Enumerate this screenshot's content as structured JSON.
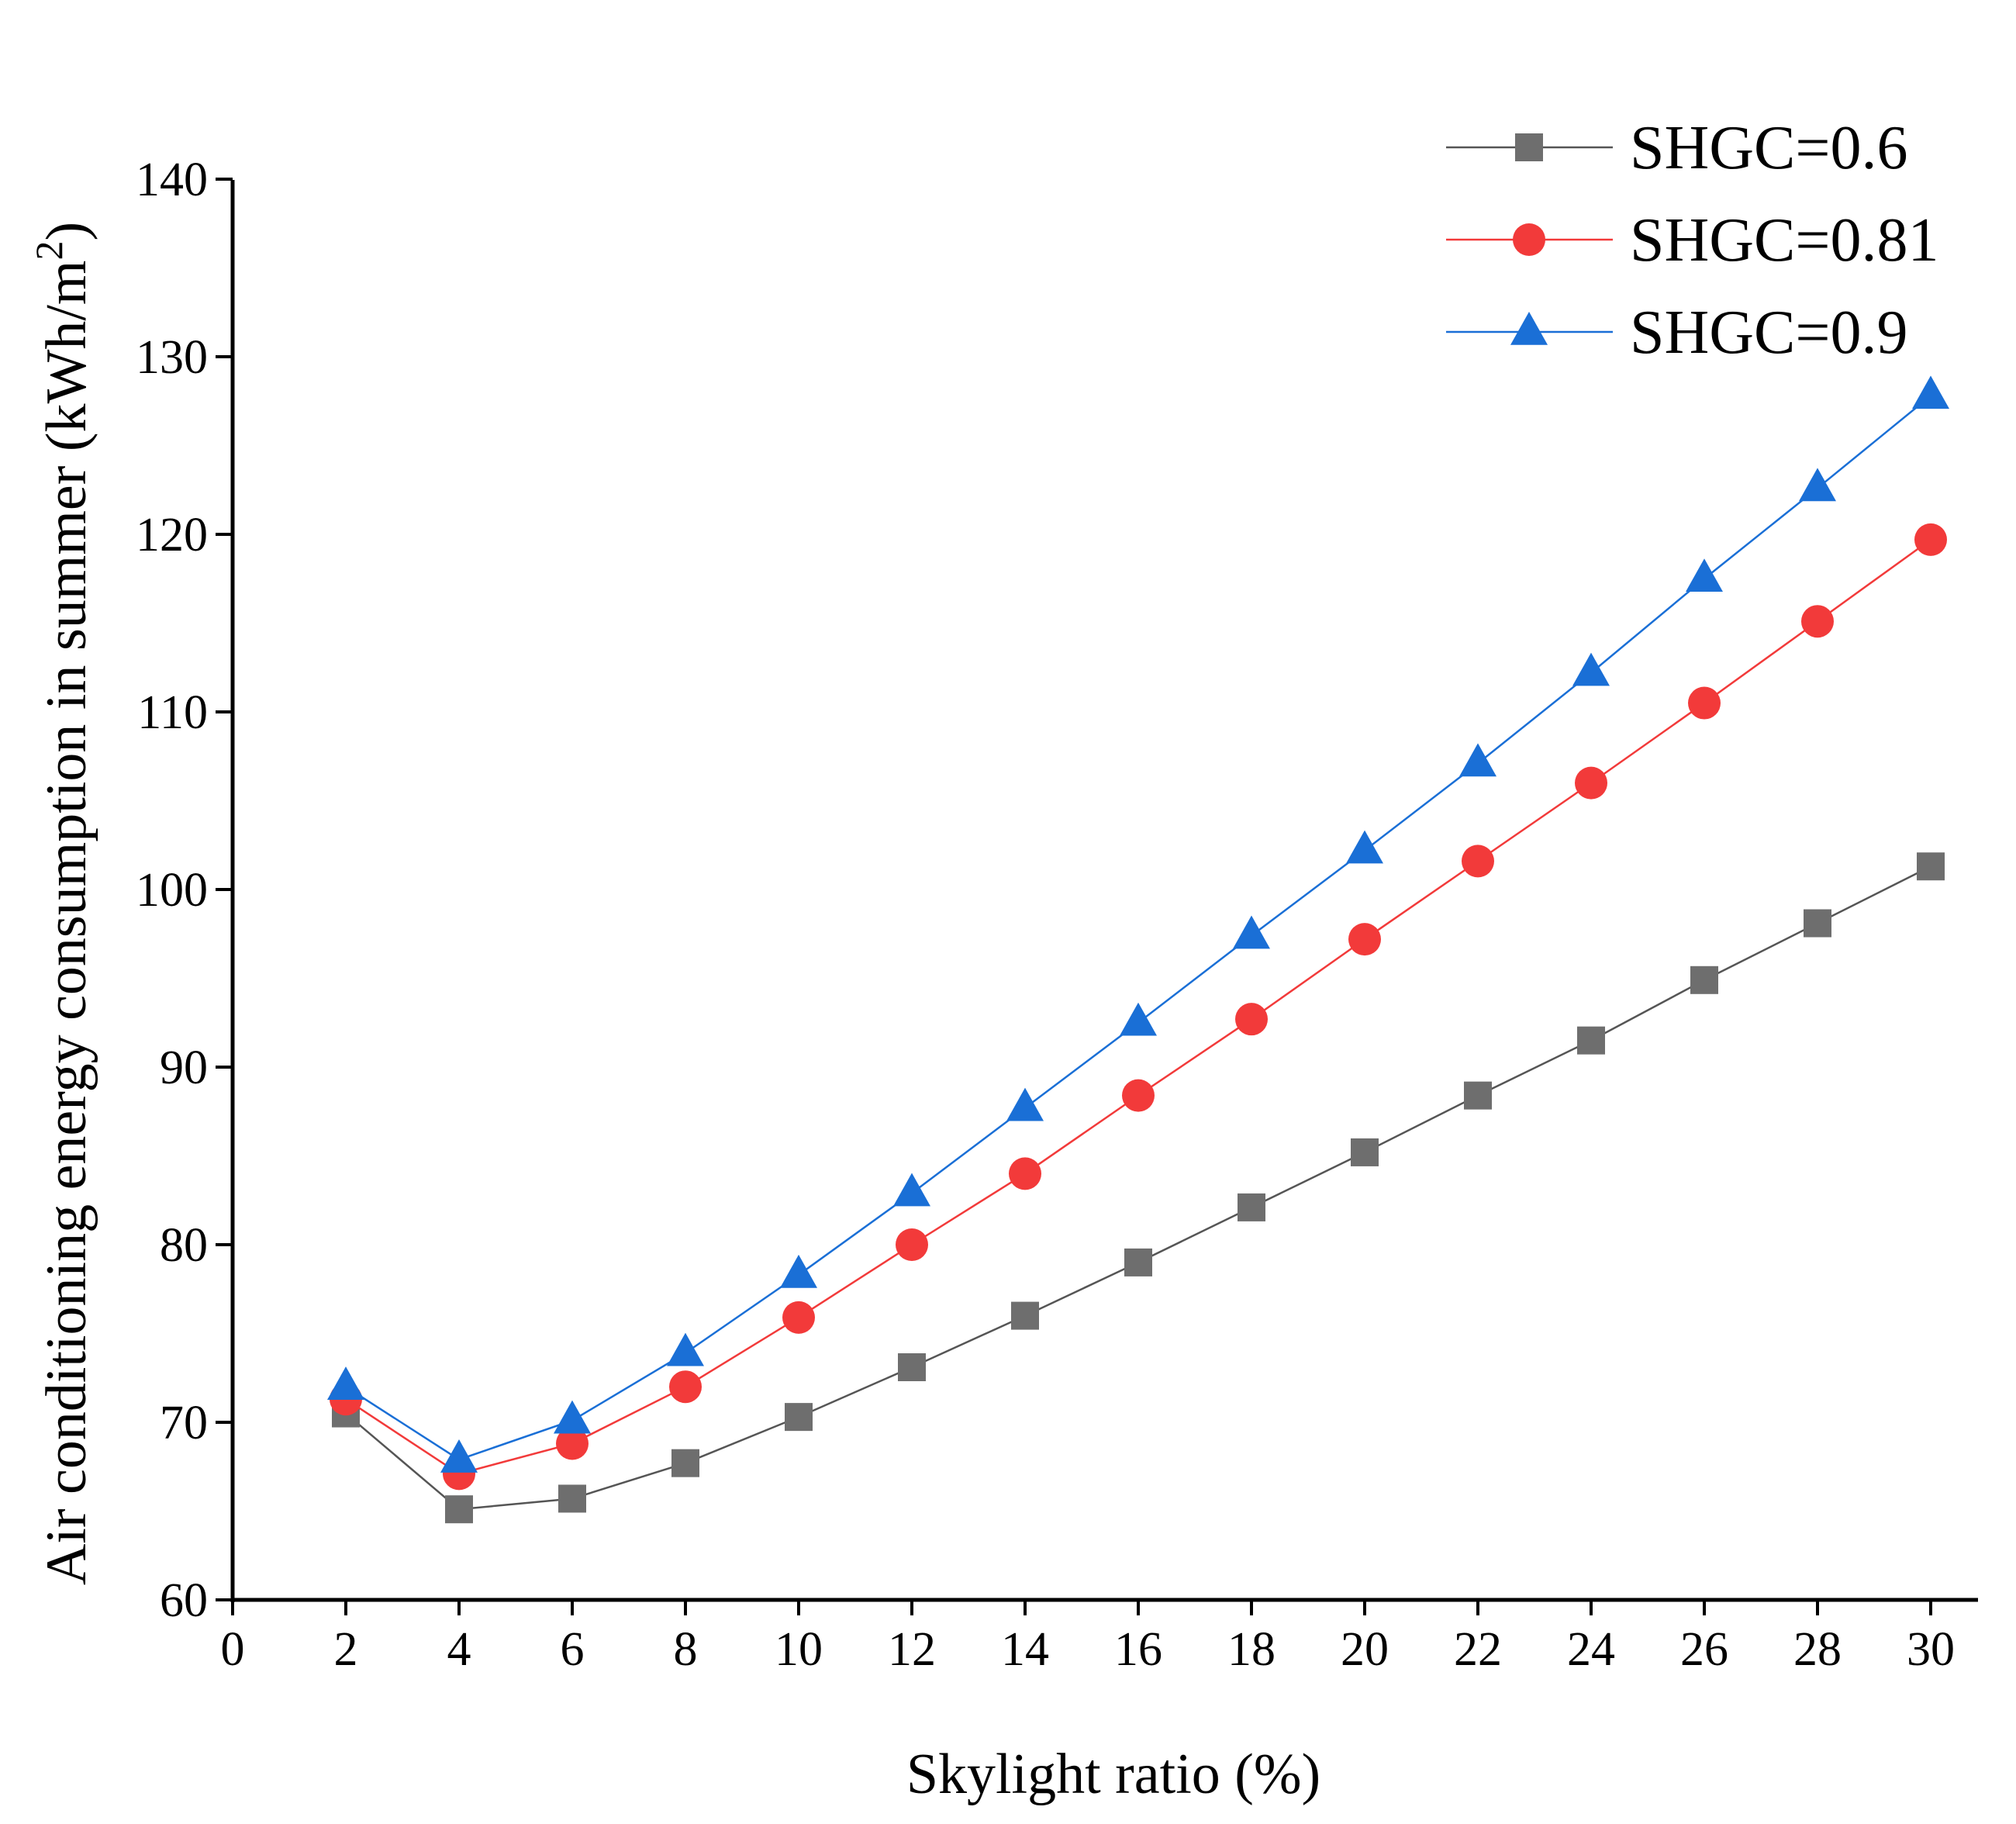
{
  "chart_data": {
    "type": "line",
    "title": "",
    "xlabel": "Skylight ratio (%)",
    "ylabel_main": "Air conditioning energy consumption in summer (kWh/m",
    "ylabel_sup": "2",
    "ylabel_close": ")",
    "xlim": [
      0,
      31
    ],
    "ylim": [
      60,
      140
    ],
    "xticks": [
      0,
      2,
      4,
      6,
      8,
      10,
      12,
      14,
      16,
      18,
      20,
      22,
      24,
      26,
      28,
      30
    ],
    "yticks": [
      60,
      70,
      80,
      90,
      100,
      110,
      120,
      130,
      140
    ],
    "x": [
      2,
      4,
      6,
      8,
      10,
      12,
      14,
      16,
      18,
      20,
      22,
      24,
      26,
      28,
      30
    ],
    "legend_position": "top-right",
    "series": [
      {
        "name": "SHGC=0.6",
        "color": "#6e6e6e",
        "line_color": "#555555",
        "marker": "square",
        "values": [
          70.5,
          65.1,
          65.7,
          67.7,
          70.3,
          73.1,
          76.0,
          79.0,
          82.1,
          85.2,
          88.4,
          91.5,
          94.9,
          98.1,
          101.3
        ]
      },
      {
        "name": "SHGC=0.81",
        "color": "#f23a3a",
        "line_color": "#f23a3a",
        "marker": "circle",
        "values": [
          71.3,
          67.1,
          68.8,
          72.0,
          75.9,
          80.0,
          84.0,
          88.4,
          92.7,
          97.2,
          101.6,
          106.0,
          110.5,
          115.1,
          119.7
        ]
      },
      {
        "name": "SHGC=0.9",
        "color": "#1a6fd6",
        "line_color": "#1a6fd6",
        "marker": "triangle",
        "values": [
          72.0,
          67.9,
          70.1,
          73.9,
          78.3,
          82.9,
          87.7,
          92.5,
          97.4,
          102.2,
          107.1,
          112.2,
          117.5,
          122.6,
          127.8
        ]
      }
    ]
  }
}
